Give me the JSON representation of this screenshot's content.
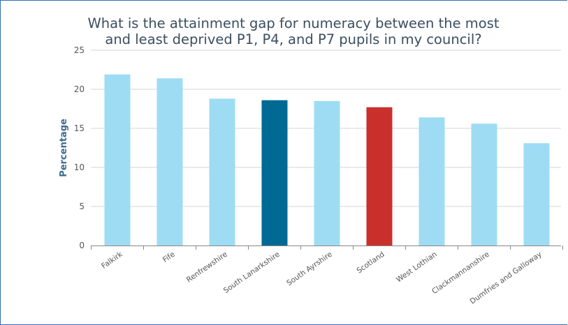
{
  "chart_data": {
    "type": "bar",
    "title": "What is the attainment gap for numeracy between the most and least deprived P1, P4, and P7 pupils in my council?",
    "ylabel": "Percentage",
    "xlabel": "",
    "ylim": [
      0,
      25
    ],
    "yticks": [
      0,
      5,
      10,
      15,
      20,
      25
    ],
    "grid": true,
    "categories": [
      "Falkirk",
      "Fife",
      "Renfrewshire",
      "South Lanarkshire",
      "South Ayrshire",
      "Scotland",
      "West Lothian",
      "Clackmannanshire",
      "Dumfries and Galloway"
    ],
    "values": [
      21.9,
      21.4,
      18.8,
      18.6,
      18.5,
      17.7,
      16.4,
      15.6,
      13.1
    ],
    "bar_colors": [
      "#9edcf4",
      "#9edcf4",
      "#9edcf4",
      "#006994",
      "#9edcf4",
      "#c9302c",
      "#9edcf4",
      "#9edcf4",
      "#9edcf4"
    ]
  }
}
